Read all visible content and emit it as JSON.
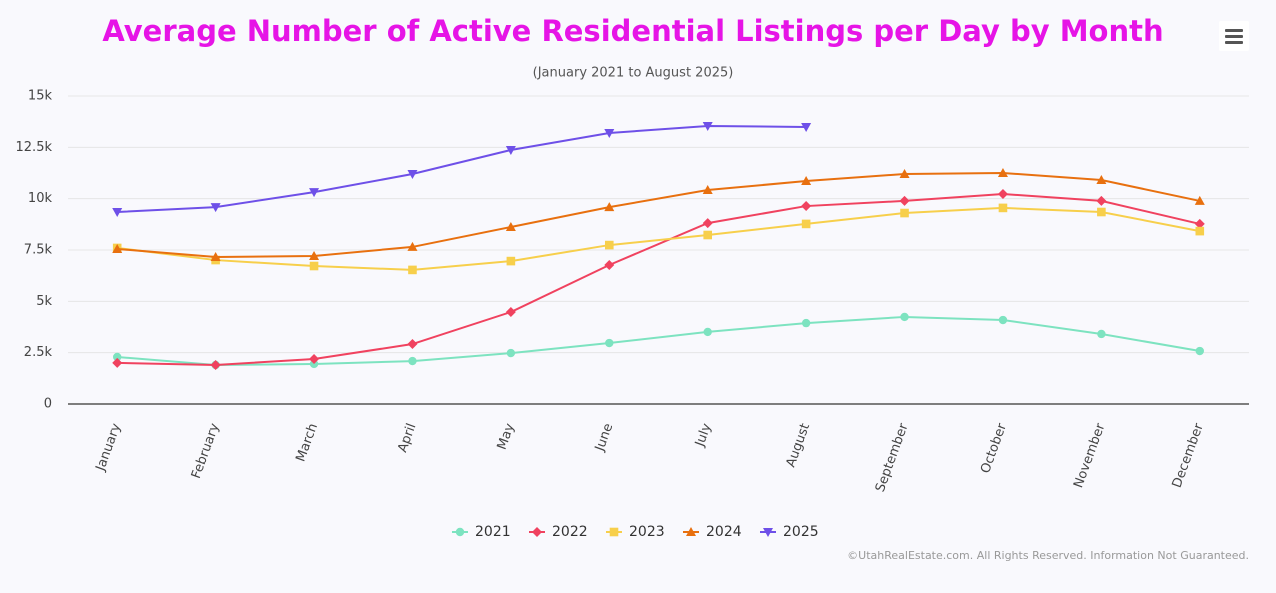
{
  "chart_data": {
    "type": "line",
    "title": "Average Number of Active Residential Listings per Day by Month",
    "subtitle": "(January 2021 to August 2025)",
    "credits": "©UtahRealEstate.com. All Rights Reserved. Information Not Guaranteed.",
    "categories": [
      "January",
      "February",
      "March",
      "April",
      "May",
      "June",
      "July",
      "August",
      "September",
      "October",
      "November",
      "December"
    ],
    "ylim": [
      0,
      15000
    ],
    "yticks": [
      0,
      {
        "value": 2500,
        "label": "2.5k"
      },
      {
        "value": 5000,
        "label": "5k"
      },
      {
        "value": 7500,
        "label": "7.5k"
      },
      {
        "value": 10000,
        "label": "10k"
      },
      {
        "value": 12500,
        "label": "12.5k"
      },
      {
        "value": 15000,
        "label": "15k"
      }
    ],
    "grid": true,
    "legend": "bottom",
    "series": [
      {
        "name": "2021",
        "color": "#7de3c0",
        "marker": "circle",
        "values": [
          2290,
          1900,
          1950,
          2090,
          2480,
          2970,
          3510,
          3940,
          4240,
          4090,
          3410,
          2580
        ]
      },
      {
        "name": "2022",
        "color": "#f0425f",
        "marker": "diamond",
        "values": [
          2000,
          1900,
          2190,
          2920,
          4480,
          6770,
          8810,
          9640,
          9890,
          10230,
          9890,
          8770
        ]
      },
      {
        "name": "2023",
        "color": "#f7cf4b",
        "marker": "square",
        "values": [
          7600,
          7010,
          6720,
          6530,
          6960,
          7740,
          8230,
          8770,
          9300,
          9550,
          9350,
          8420
        ]
      },
      {
        "name": "2024",
        "color": "#e8700f",
        "marker": "triangle",
        "values": [
          7550,
          7160,
          7210,
          7650,
          8620,
          9590,
          10420,
          10860,
          11200,
          11250,
          10910,
          9890
        ]
      },
      {
        "name": "2025",
        "color": "#6e50e8",
        "marker": "triangle-down",
        "values": [
          9350,
          9590,
          10320,
          11200,
          12370,
          13200,
          13540,
          13490,
          null,
          null,
          null,
          null
        ]
      }
    ]
  }
}
